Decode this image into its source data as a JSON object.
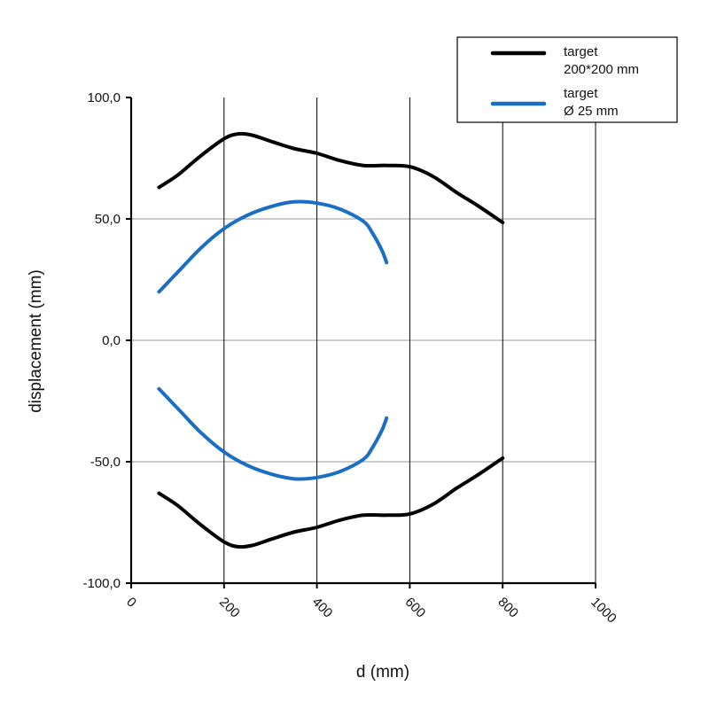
{
  "chart_data": {
    "type": "line",
    "title": "",
    "xlabel": "d (mm)",
    "ylabel": "displacement (mm)",
    "xlim": [
      0,
      1000
    ],
    "ylim": [
      -100,
      100
    ],
    "x_ticks": [
      0,
      200,
      400,
      600,
      800,
      1000
    ],
    "x_tick_labels": [
      "0",
      "200",
      "400",
      "600",
      "800",
      "1000"
    ],
    "y_ticks": [
      -100,
      -50,
      0,
      50,
      100
    ],
    "y_tick_labels": [
      "-100,0",
      "-50,0",
      "0,0",
      "50,0",
      "100,0"
    ],
    "grid": {
      "vertical": true,
      "horizontal": true
    },
    "legend_position": "top-right",
    "series": [
      {
        "name_lines": [
          "target",
          "200*200 mm"
        ],
        "color": "#000000",
        "upper": {
          "x": [
            60,
            100,
            150,
            200,
            230,
            260,
            300,
            350,
            400,
            450,
            500,
            550,
            600,
            650,
            700,
            750,
            800
          ],
          "y": [
            63,
            68,
            76,
            83,
            85,
            84.5,
            82,
            79,
            77,
            74,
            72,
            72,
            71.5,
            67.5,
            61,
            55,
            48.5
          ]
        },
        "lower": {
          "x": [
            60,
            100,
            150,
            200,
            230,
            260,
            300,
            350,
            400,
            450,
            500,
            550,
            600,
            650,
            700,
            750,
            800
          ],
          "y": [
            -63,
            -68,
            -76,
            -83,
            -85,
            -84.5,
            -82,
            -79,
            -77,
            -74,
            -72,
            -72,
            -71.5,
            -67.5,
            -61,
            -55,
            -48.5
          ]
        }
      },
      {
        "name_lines": [
          "target",
          "Ø 25 mm"
        ],
        "color": "#1a6fc4",
        "upper": {
          "x": [
            60,
            100,
            150,
            200,
            250,
            300,
            350,
            400,
            450,
            500,
            520,
            540,
            550
          ],
          "y": [
            20,
            28,
            38,
            46,
            51.5,
            55,
            57,
            56.5,
            54,
            49,
            44,
            37,
            32
          ]
        },
        "lower": {
          "x": [
            60,
            100,
            150,
            200,
            250,
            300,
            350,
            400,
            450,
            500,
            520,
            540,
            550
          ],
          "y": [
            -20,
            -28,
            -38,
            -46,
            -51.5,
            -55,
            -57,
            -56.5,
            -54,
            -49,
            -44,
            -37,
            -32
          ]
        }
      }
    ]
  }
}
